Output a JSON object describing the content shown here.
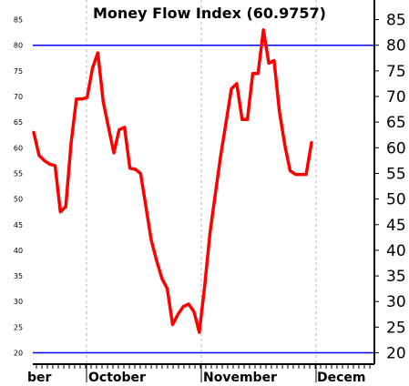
{
  "chart_data": {
    "type": "line",
    "title": "Money Flow Index (60.9757)",
    "xlabel": "",
    "ylabel": "",
    "ylim": [
      18,
      88
    ],
    "y_ticks": [
      20,
      25,
      30,
      35,
      40,
      45,
      50,
      55,
      60,
      65,
      70,
      75,
      80,
      85
    ],
    "x_tick_labels": [
      "ber",
      "October",
      "November",
      "Decem"
    ],
    "reference_lines": [
      20,
      80
    ],
    "grid": "vertical-dashed",
    "colors": {
      "line": "#ff0000",
      "reference": "#0000ff",
      "grid": "#bbbbbb"
    },
    "series": [
      {
        "values": [
          63,
          58.5,
          57.5,
          56.8,
          56.5,
          47.5,
          48.5,
          61,
          69.5,
          69.5,
          69.8,
          75.5,
          78.5,
          69,
          64,
          59,
          63.5,
          64,
          56,
          55.8,
          55,
          48.5,
          42,
          38,
          34.5,
          32.5,
          25.5,
          27.5,
          29,
          29.5,
          28,
          24,
          33,
          43.5,
          51,
          58.5,
          65,
          71.5,
          72.5,
          65.5,
          65.5,
          74.5,
          74.5,
          83,
          76.5,
          77,
          67,
          60.5,
          55.5,
          54.8,
          54.8,
          54.8,
          61
        ]
      }
    ]
  }
}
